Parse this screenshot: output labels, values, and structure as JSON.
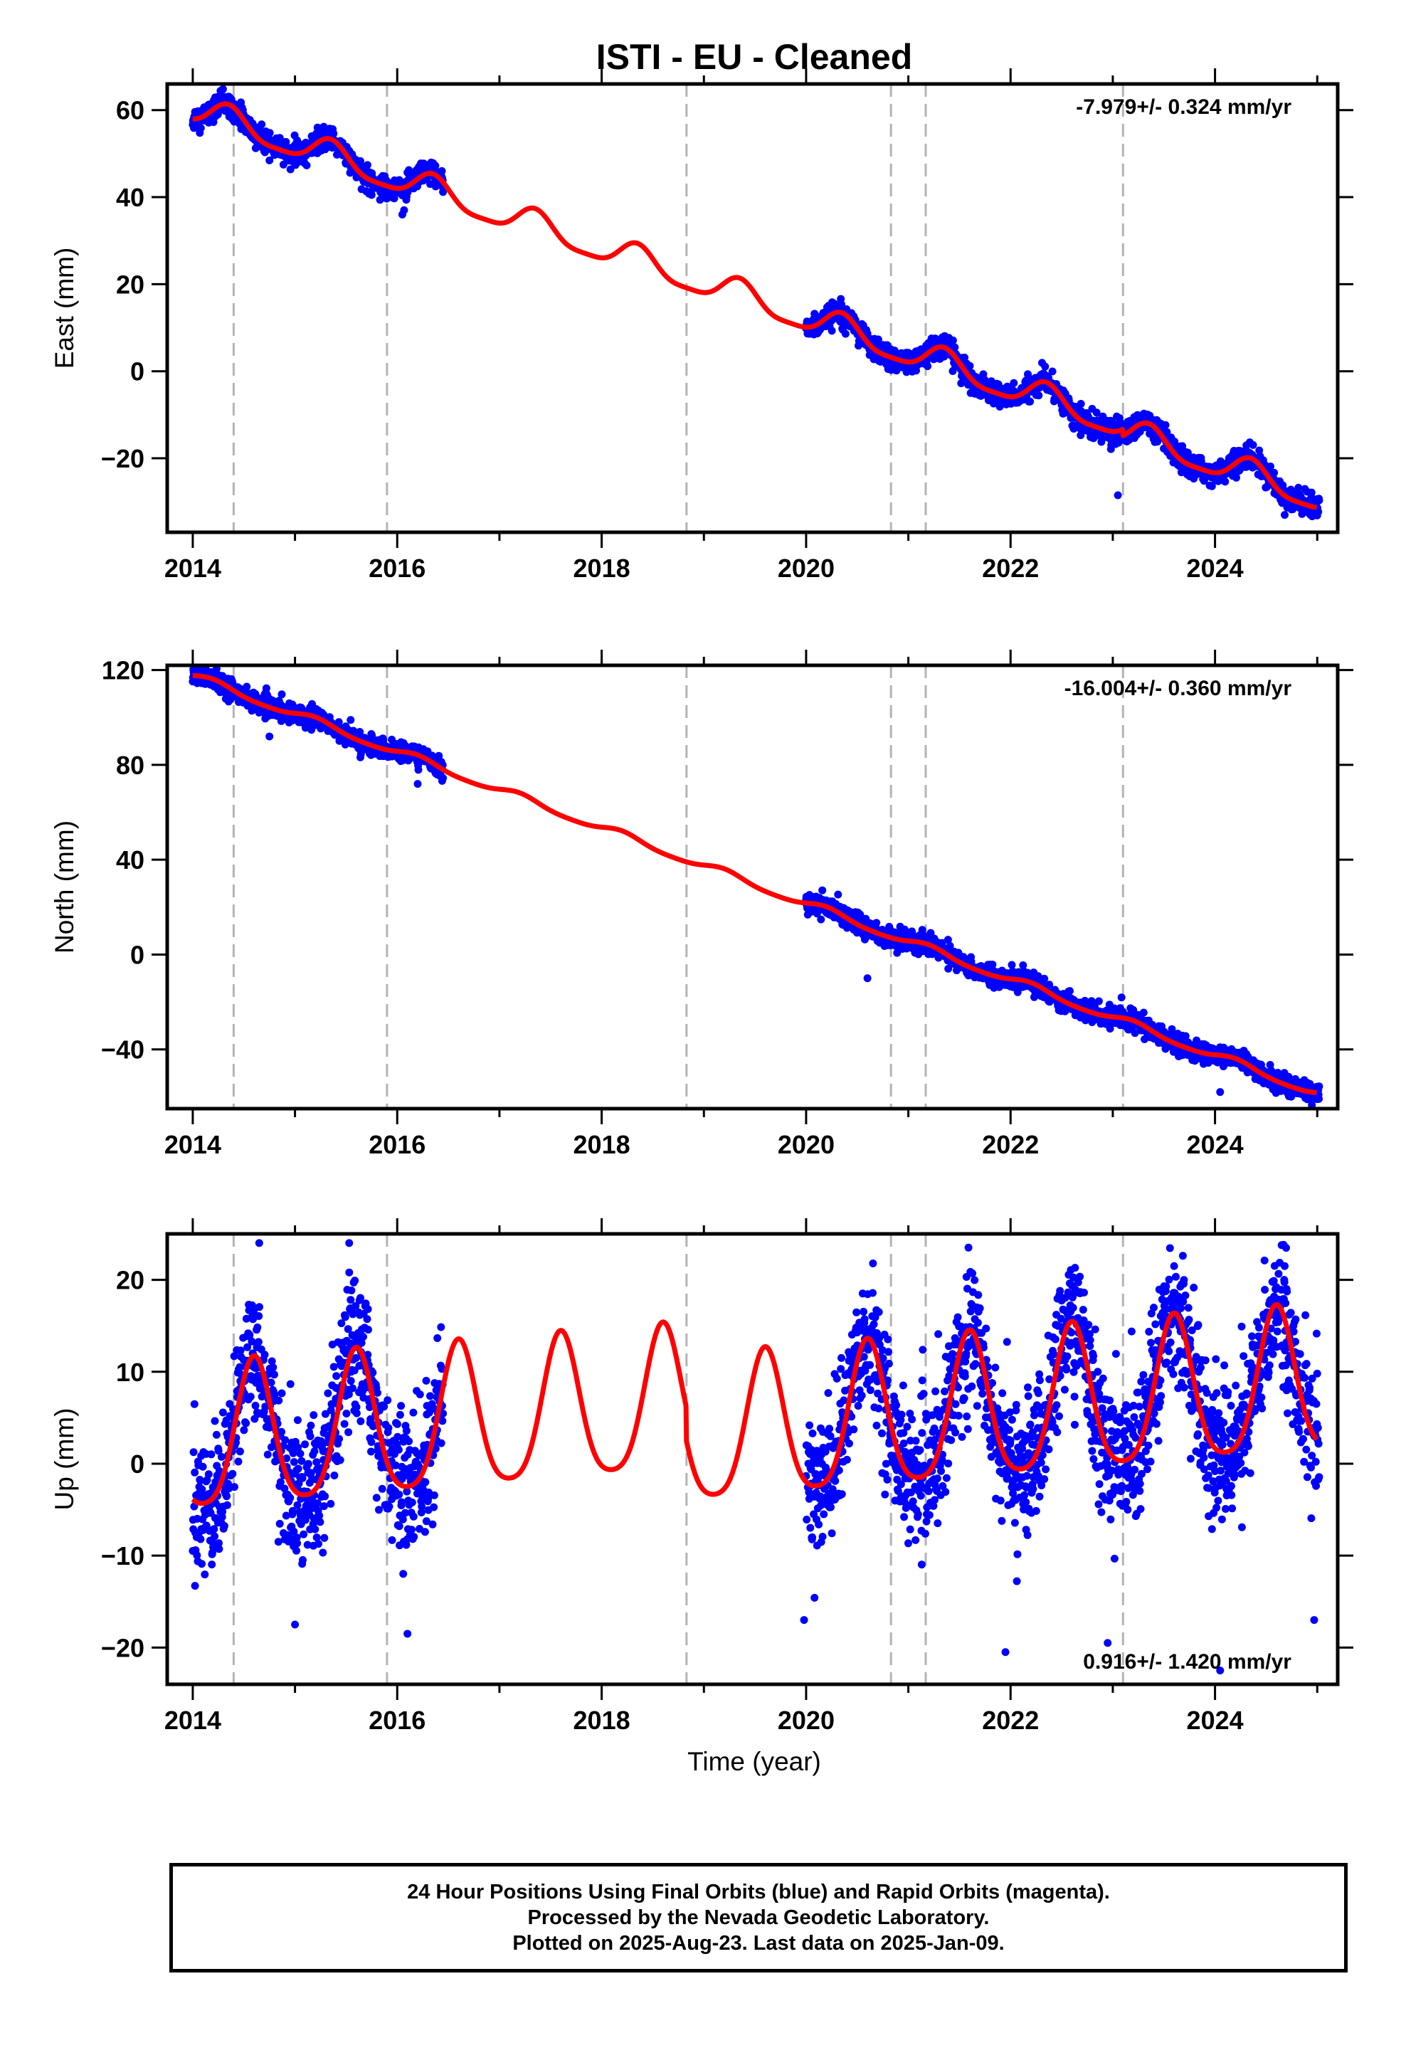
{
  "title": "ISTI  - EU - Cleaned",
  "xlabel": "Time (year)",
  "colors": {
    "data": "#0000ff",
    "model": "#ff0000",
    "steps": "#b4b4b4",
    "frame": "#000000"
  },
  "footer": {
    "line1": "24 Hour Positions Using Final Orbits (blue) and Rapid Orbits (magenta).",
    "line2": "Processed by the Nevada Geodetic Laboratory.",
    "line3": "Plotted on 2025-Aug-23. Last data on 2025-Jan-09."
  },
  "chart_data": [
    {
      "type": "scatter",
      "component": "East",
      "ylabel": "East (mm)",
      "rate_text": "-7.979+/- 0.324 mm/yr",
      "rate_position": "top-right",
      "xlim": [
        2013.75,
        2025.2
      ],
      "ylim": [
        -37,
        66
      ],
      "xticks": [
        2014,
        2016,
        2018,
        2020,
        2022,
        2024
      ],
      "yticks": [
        60,
        40,
        20,
        0,
        -20
      ],
      "step_epochs": [
        2014.4,
        2015.9,
        2018.83,
        2020.83,
        2021.17,
        2023.1
      ],
      "model": {
        "offset": 60.1,
        "reference_year": 2014.0,
        "segments": [
          {
            "x": [
              2014.0,
              2014.4
            ],
            "trend": -7.979,
            "shift": 0
          },
          {
            "x": [
              2014.4,
              2015.9
            ],
            "trend": -7.979,
            "shift": 0
          },
          {
            "x": [
              2015.9,
              2018.83
            ],
            "trend": -7.979,
            "shift": 0
          },
          {
            "x": [
              2018.83,
              2020.83
            ],
            "trend": -7.979,
            "shift": 0
          },
          {
            "x": [
              2020.83,
              2021.17
            ],
            "trend": -7.979,
            "shift": 0
          },
          {
            "x": [
              2021.17,
              2023.1
            ],
            "trend": -7.979,
            "shift": 0
          },
          {
            "x": [
              2023.1,
              2025.0
            ],
            "trend": -7.979,
            "shift": -1.5
          }
        ],
        "seasonal": {
          "annual_amplitude": 3.2,
          "annual_peak_phase": 0.35,
          "semiannual_amplitude": 0.8
        },
        "offsets": [
          {
            "x": 2020.0,
            "value": 8.0
          },
          {
            "x": 2014.0,
            "value": 59.5
          }
        ]
      },
      "observation_spans": [
        [
          2014.0,
          2016.45
        ],
        [
          2020.0,
          2025.02
        ]
      ],
      "scatter": 1.3,
      "outliers": [
        {
          "x": 2023.05,
          "y": -28.5
        },
        {
          "x": 2016.05,
          "y": 36
        }
      ]
    },
    {
      "type": "scatter",
      "component": "North",
      "ylabel": "North (mm)",
      "rate_text": "-16.004+/- 0.360 mm/yr",
      "rate_position": "top-right",
      "xlim": [
        2013.75,
        2025.2
      ],
      "ylim": [
        -65,
        122
      ],
      "xticks": [
        2014,
        2016,
        2018,
        2020,
        2022,
        2024
      ],
      "yticks": [
        120,
        80,
        40,
        0,
        -40
      ],
      "step_epochs": [
        2014.4,
        2015.9,
        2018.83,
        2020.83,
        2021.17,
        2023.1
      ],
      "model": {
        "offset": 117.5,
        "reference_year": 2014.0,
        "segments": [
          {
            "x": [
              2014.0,
              2025.0
            ],
            "trend": -16.004,
            "shift": 0
          }
        ],
        "seasonal": {
          "annual_amplitude": 1.6,
          "annual_peak_phase": 0.2,
          "semiannual_amplitude": 0.3
        },
        "offsets": [
          {
            "x": 2014.0,
            "value": 117.5
          },
          {
            "x": 2020.0,
            "value": 21.5
          }
        ]
      },
      "observation_spans": [
        [
          2014.0,
          2016.45
        ],
        [
          2020.0,
          2025.02
        ]
      ],
      "scatter": 2.0,
      "outliers": [
        {
          "x": 2020.6,
          "y": -10
        },
        {
          "x": 2024.05,
          "y": -58
        },
        {
          "x": 2014.75,
          "y": 92
        },
        {
          "x": 2016.2,
          "y": 72
        }
      ]
    },
    {
      "type": "scatter",
      "component": "Up",
      "ylabel": "Up (mm)",
      "rate_text": "0.916+/- 1.420 mm/yr",
      "rate_position": "bottom-right",
      "xlim": [
        2013.75,
        2025.2
      ],
      "ylim": [
        -24,
        25
      ],
      "xticks": [
        2014,
        2016,
        2018,
        2020,
        2022,
        2024
      ],
      "yticks": [
        20,
        10,
        0,
        -10,
        -20
      ],
      "step_epochs": [
        2014.4,
        2015.9,
        2018.83,
        2020.83,
        2021.17,
        2023.1
      ],
      "model": {
        "offset": 2.0,
        "reference_year": 2014.0,
        "segments": [
          {
            "x": [
              2014.0,
              2018.83
            ],
            "trend": 0.916,
            "shift": 0
          },
          {
            "x": [
              2018.83,
              2025.0
            ],
            "trend": 0.916,
            "shift": -3.6
          }
        ],
        "seasonal": {
          "annual_amplitude": 7.8,
          "annual_peak_phase": 0.6,
          "semiannual_amplitude": 1.4
        },
        "offsets": []
      },
      "observation_spans": [
        [
          2014.0,
          2016.45
        ],
        [
          2020.0,
          2025.02
        ]
      ],
      "scatter": 3.6,
      "outliers": [
        {
          "x": 2014.65,
          "y": 24
        },
        {
          "x": 2015.53,
          "y": 24
        },
        {
          "x": 2015.0,
          "y": -17.5
        },
        {
          "x": 2016.1,
          "y": -18.5
        },
        {
          "x": 2021.95,
          "y": -20.5
        },
        {
          "x": 2022.95,
          "y": -19.5
        },
        {
          "x": 2024.05,
          "y": -22.5
        },
        {
          "x": 2023.6,
          "y": 21.5
        },
        {
          "x": 2024.7,
          "y": 19
        },
        {
          "x": 2019.98,
          "y": -17
        },
        {
          "x": 2024.97,
          "y": -17
        }
      ]
    }
  ]
}
